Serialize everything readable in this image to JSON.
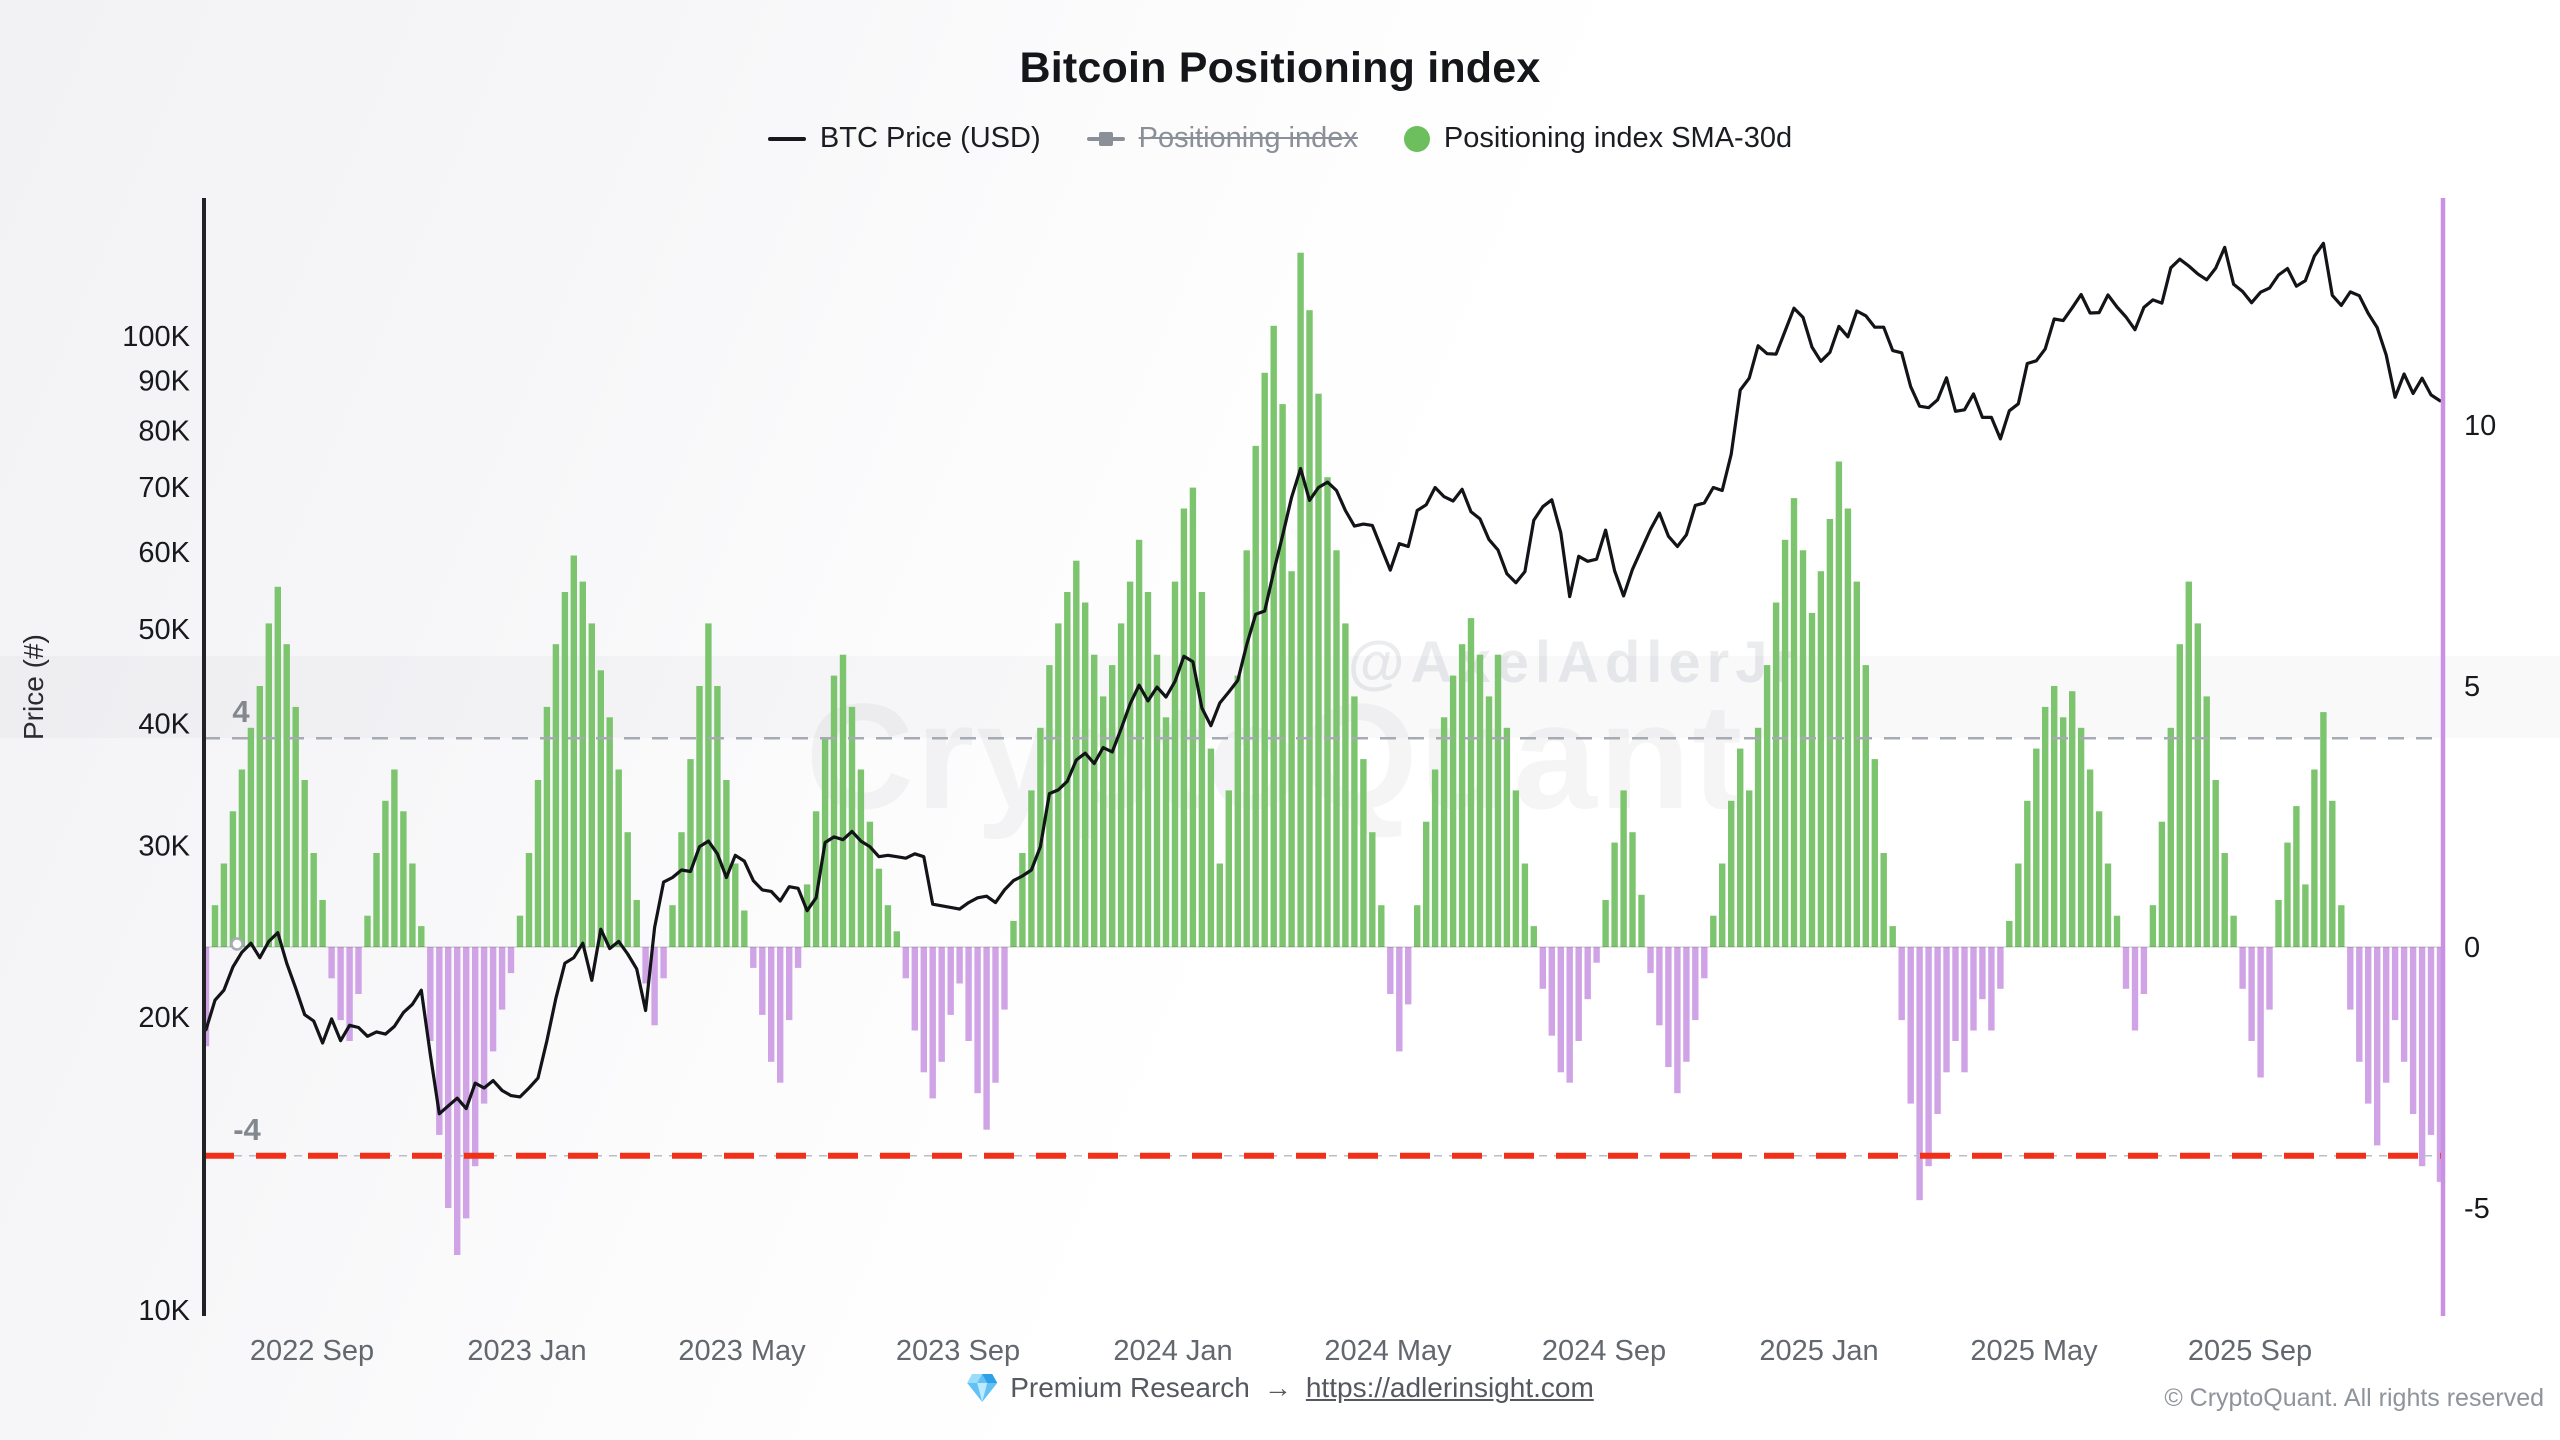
{
  "title": "Bitcoin Positioning index",
  "legend": [
    {
      "label": "BTC Price (USD)",
      "marker": "line",
      "color": "#17191d",
      "disabled": false
    },
    {
      "label": "Positioning index",
      "marker": "line-square",
      "color": "#8a8f98",
      "disabled": true
    },
    {
      "label": "Positioning index SMA-30d",
      "marker": "circle",
      "color": "#6cbf5c",
      "disabled": false
    }
  ],
  "watermarks": {
    "handle": "@AxelAdlerJr",
    "brand": "CryptoQuant"
  },
  "footer": {
    "premium": "Premium Research",
    "arrow": "→",
    "link": "https://adlerinsight.com",
    "copyright": "© CryptoQuant. All rights reserved"
  },
  "colors": {
    "price_line": "#121418",
    "bar_positive": "#7dc46f",
    "bar_negative": "#cfa3e6",
    "upper_threshold": "#a6abb3",
    "lower_threshold": "#f03018",
    "right_axis": "#c991e6",
    "left_axis": "#202226"
  },
  "chart_data": {
    "type": "mixed",
    "x_range": {
      "start": "2022-07",
      "end": "2025-12",
      "points": 250
    },
    "x_ticks": [
      {
        "label": "2022 Sep",
        "m": 2
      },
      {
        "label": "2023 Jan",
        "m": 6
      },
      {
        "label": "2023 May",
        "m": 10
      },
      {
        "label": "2023 Sep",
        "m": 14
      },
      {
        "label": "2024 Jan",
        "m": 18
      },
      {
        "label": "2024 May",
        "m": 22
      },
      {
        "label": "2024 Sep",
        "m": 26
      },
      {
        "label": "2025 Jan",
        "m": 30
      },
      {
        "label": "2025 May",
        "m": 34
      },
      {
        "label": "2025 Sep",
        "m": 38
      }
    ],
    "y_left": {
      "label": "Price (#)",
      "scale": "log",
      "range": [
        10000,
        140000
      ],
      "ticks": [
        {
          "label": "100K",
          "value": 100000
        },
        {
          "label": "90K",
          "value": 90000
        },
        {
          "label": "80K",
          "value": 80000
        },
        {
          "label": "70K",
          "value": 70000
        },
        {
          "label": "60K",
          "value": 60000
        },
        {
          "label": "50K",
          "value": 50000
        },
        {
          "label": "40K",
          "value": 40000
        },
        {
          "label": "30K",
          "value": 30000
        },
        {
          "label": "20K",
          "value": 20000
        },
        {
          "label": "10K",
          "value": 10000
        }
      ]
    },
    "y_right": {
      "scale": "linear",
      "range": [
        -6.9,
        14.3
      ],
      "ticks": [
        {
          "label": "10",
          "value": 10
        },
        {
          "label": "5",
          "value": 5
        },
        {
          "label": "0",
          "value": 0
        },
        {
          "label": "-5",
          "value": -5
        }
      ]
    },
    "thresholds": {
      "upper": {
        "label": "4",
        "value": 4,
        "style": "grey-dashed"
      },
      "lower": {
        "label": "-4",
        "value": -4,
        "style": "red-dashed"
      }
    },
    "series": [
      {
        "name": "BTC Price (USD)",
        "type": "line",
        "axis": "left",
        "color": "#121418",
        "values": [
          19400,
          20800,
          21300,
          22500,
          23300,
          23800,
          23000,
          23900,
          24400,
          22700,
          21400,
          20100,
          19800,
          18800,
          19900,
          18900,
          19600,
          19500,
          19100,
          19300,
          19200,
          19550,
          20200,
          20600,
          21300,
          18300,
          15900,
          16200,
          16500,
          16100,
          17100,
          16900,
          17200,
          16800,
          16600,
          16550,
          16900,
          17300,
          18900,
          20900,
          22700,
          23000,
          23800,
          21800,
          24600,
          23500,
          23900,
          23200,
          22400,
          20300,
          24700,
          27500,
          27800,
          28300,
          28200,
          29900,
          30300,
          29400,
          27800,
          29300,
          28900,
          27600,
          27000,
          26900,
          26300,
          27200,
          27100,
          25700,
          26500,
          30200,
          30600,
          30400,
          31000,
          30300,
          29900,
          29200,
          29300,
          29200,
          29100,
          29400,
          29200,
          26100,
          26000,
          25900,
          25800,
          26200,
          26500,
          26600,
          26200,
          27000,
          27600,
          27900,
          28300,
          29900,
          33900,
          34200,
          34900,
          36700,
          37300,
          36400,
          37800,
          37400,
          39500,
          41900,
          43800,
          42200,
          43600,
          42600,
          44200,
          46900,
          46300,
          41500,
          39800,
          42000,
          43100,
          44300,
          48200,
          51800,
          52200,
          57300,
          62400,
          68300,
          73100,
          67800,
          69900,
          70800,
          69400,
          66200,
          63800,
          64100,
          63900,
          60600,
          57500,
          61200,
          60800,
          66200,
          67100,
          69900,
          68400,
          67700,
          69600,
          66000,
          64900,
          61800,
          60300,
          57000,
          55800,
          57300,
          64700,
          66800,
          67900,
          62800,
          54000,
          59400,
          58700,
          59000,
          63200,
          57400,
          54100,
          57600,
          60400,
          63300,
          65800,
          62300,
          60800,
          62500,
          67000,
          67400,
          69900,
          69400,
          75600,
          88000,
          90500,
          97700,
          95900,
          95800,
          101200,
          106800,
          104500,
          97400,
          94200,
          96200,
          102300,
          99800,
          106100,
          104900,
          102100,
          102100,
          96600,
          96100,
          88700,
          84700,
          84400,
          86000,
          90600,
          83700,
          84000,
          87200,
          82500,
          82500,
          78400,
          83800,
          85200,
          93700,
          94300,
          97000,
          104100,
          103700,
          106900,
          110300,
          105600,
          105700,
          110200,
          107100,
          104600,
          101500,
          107000,
          108900,
          108100,
          117500,
          119900,
          118000,
          115800,
          114200,
          117400,
          123300,
          113000,
          111100,
          108200,
          110900,
          112000,
          115500,
          117300,
          112500,
          114000,
          120800,
          124500,
          110100,
          107500,
          111000,
          110000,
          105500,
          102000,
          95600,
          86500,
          91400,
          87300,
          90500,
          87000,
          85800
        ]
      },
      {
        "name": "Positioning index",
        "type": "line",
        "axis": "right",
        "color": "#8a8f98",
        "hidden": true
      },
      {
        "name": "Positioning index SMA-30d",
        "type": "bar",
        "axis": "right",
        "color_positive": "#7dc46f",
        "color_negative": "#cfa3e6",
        "values": [
          -1.9,
          0.8,
          1.6,
          2.6,
          3.4,
          4.2,
          5.0,
          6.2,
          6.9,
          5.8,
          4.6,
          3.2,
          1.8,
          0.9,
          -0.6,
          -1.4,
          -1.8,
          -0.9,
          0.6,
          1.8,
          2.8,
          3.4,
          2.6,
          1.6,
          0.4,
          -1.8,
          -3.6,
          -5.0,
          -5.9,
          -5.2,
          -4.2,
          -3.0,
          -2.0,
          -1.2,
          -0.5,
          0.6,
          1.8,
          3.2,
          4.6,
          5.8,
          6.8,
          7.5,
          7.0,
          6.2,
          5.3,
          4.4,
          3.4,
          2.2,
          0.9,
          -0.7,
          -1.5,
          -0.6,
          0.8,
          2.2,
          3.6,
          5.0,
          6.2,
          5.0,
          3.2,
          1.6,
          0.7,
          -0.4,
          -1.3,
          -2.2,
          -2.6,
          -1.4,
          -0.4,
          1.2,
          2.6,
          4.0,
          5.2,
          5.6,
          4.6,
          3.4,
          2.4,
          1.5,
          0.8,
          0.3,
          -0.6,
          -1.6,
          -2.4,
          -2.9,
          -2.2,
          -1.3,
          -0.7,
          -1.8,
          -2.8,
          -3.5,
          -2.6,
          -1.2,
          0.5,
          1.8,
          3.0,
          4.2,
          5.4,
          6.2,
          6.8,
          7.4,
          6.6,
          5.6,
          4.8,
          5.4,
          6.2,
          7.0,
          7.8,
          6.8,
          5.6,
          4.4,
          7.0,
          8.4,
          8.8,
          6.8,
          3.8,
          1.6,
          3.0,
          5.2,
          7.6,
          9.6,
          11.0,
          11.9,
          10.4,
          7.2,
          13.3,
          12.2,
          10.6,
          9.0,
          7.6,
          6.2,
          4.8,
          3.6,
          2.2,
          0.8,
          -0.9,
          -2.0,
          -1.1,
          0.8,
          2.4,
          3.4,
          4.4,
          5.2,
          5.8,
          6.3,
          5.6,
          4.8,
          5.6,
          4.2,
          3.0,
          1.6,
          0.4,
          -0.8,
          -1.7,
          -2.4,
          -2.6,
          -1.8,
          -1.0,
          -0.3,
          0.9,
          2.0,
          3.0,
          2.2,
          1.0,
          -0.5,
          -1.5,
          -2.3,
          -2.8,
          -2.2,
          -1.4,
          -0.6,
          0.6,
          1.6,
          2.8,
          3.8,
          3.0,
          4.2,
          5.4,
          6.6,
          7.8,
          8.6,
          7.6,
          6.4,
          7.2,
          8.2,
          9.3,
          8.4,
          7.0,
          5.4,
          3.6,
          1.8,
          0.4,
          -1.4,
          -3.0,
          -4.85,
          -4.2,
          -3.2,
          -2.4,
          -1.8,
          -2.4,
          -1.6,
          -1.0,
          -1.6,
          -0.8,
          0.5,
          1.6,
          2.8,
          3.8,
          4.6,
          5.0,
          4.4,
          4.9,
          4.2,
          3.4,
          2.6,
          1.6,
          0.6,
          -0.8,
          -1.6,
          -0.9,
          0.8,
          2.4,
          4.2,
          5.8,
          7.0,
          6.2,
          4.8,
          3.2,
          1.8,
          0.6,
          -0.8,
          -1.8,
          -2.5,
          -1.2,
          0.9,
          2.0,
          2.7,
          1.2,
          3.4,
          4.5,
          2.8,
          0.8,
          -1.2,
          -2.2,
          -3.0,
          -3.8,
          -2.6,
          -1.4,
          -2.2,
          -3.2,
          -4.2,
          -3.6,
          -4.5
        ]
      }
    ]
  }
}
